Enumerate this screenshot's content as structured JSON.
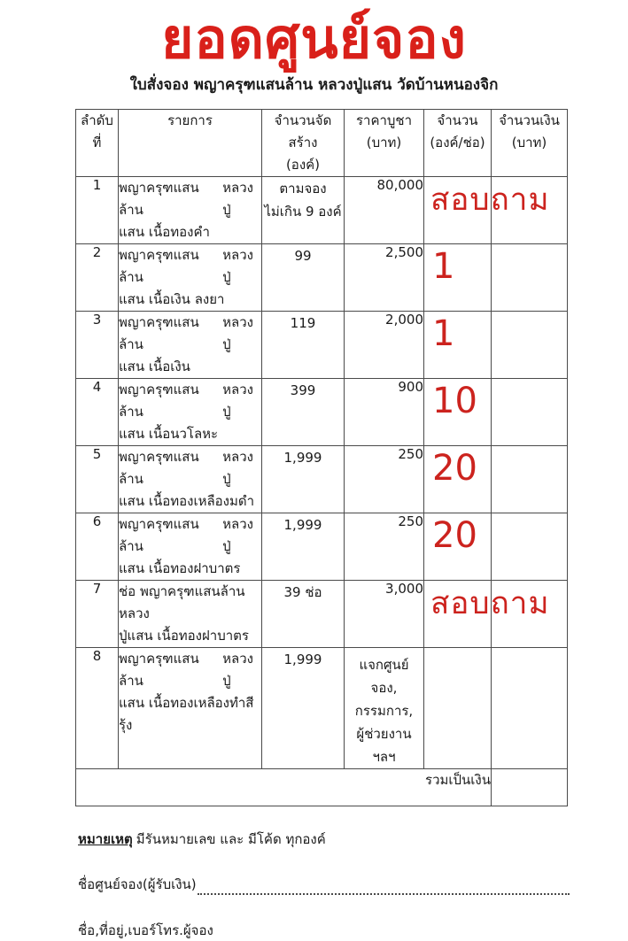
{
  "header": {
    "title": "ยอดศูนย์จอง",
    "subtitle": "ใบสั่งจอง พญาครุฑแสนล้าน หลวงปู่แสน วัดบ้านหนองจิก"
  },
  "colors": {
    "title_red": "#d9201a",
    "annotation_red": "#cc231e"
  },
  "table": {
    "headers": [
      [
        "ลำดับ",
        "ที่"
      ],
      [
        "รายการ"
      ],
      [
        "จำนวนจัดสร้าง",
        "(องค์)"
      ],
      [
        "ราคาบูชา",
        "(บาท)"
      ],
      [
        "จำนวน",
        "(องค์/ช่อ)"
      ],
      [
        "จำนวนเงิน",
        "(บาท)"
      ]
    ],
    "rows": [
      {
        "no": "1",
        "item": [
          [
            "พญาครุฑแสนล้าน",
            "หลวงปู่"
          ],
          [
            "แสน เนื้อทองคำ"
          ]
        ],
        "made": [
          "ตามจอง",
          "ไม่เกิน 9 องค์"
        ],
        "price": "80,000",
        "qty": "สอบถาม",
        "qty_kind": "ask",
        "amount": ""
      },
      {
        "no": "2",
        "item": [
          [
            "พญาครุฑแสนล้าน",
            "หลวงปู่"
          ],
          [
            "แสน เนื้อเงิน ลงยา"
          ]
        ],
        "made": [
          "99"
        ],
        "price": "2,500",
        "qty": "1",
        "qty_kind": "num",
        "amount": ""
      },
      {
        "no": "3",
        "item": [
          [
            "พญาครุฑแสนล้าน",
            "หลวงปู่"
          ],
          [
            "แสน เนื้อเงิน"
          ]
        ],
        "made": [
          "119"
        ],
        "price": "2,000",
        "qty": "1",
        "qty_kind": "num",
        "amount": ""
      },
      {
        "no": "4",
        "item": [
          [
            "พญาครุฑแสนล้าน",
            "หลวงปู่"
          ],
          [
            "แสน เนื้อนวโลหะ"
          ]
        ],
        "made": [
          "399"
        ],
        "price": "900",
        "qty": "10",
        "qty_kind": "num",
        "amount": ""
      },
      {
        "no": "5",
        "item": [
          [
            "พญาครุฑแสนล้าน",
            "หลวงปู่"
          ],
          [
            "แสน เนื้อทองเหลืองมดำ"
          ]
        ],
        "made": [
          "1,999"
        ],
        "price": "250",
        "qty": "20",
        "qty_kind": "num",
        "amount": ""
      },
      {
        "no": "6",
        "item": [
          [
            "พญาครุฑแสนล้าน",
            "หลวงปู่"
          ],
          [
            "แสน เนื้อทองฝาบาตร"
          ]
        ],
        "made": [
          "1,999"
        ],
        "price": "250",
        "qty": "20",
        "qty_kind": "num",
        "amount": ""
      },
      {
        "no": "7",
        "item": [
          [
            "ช่อ พญาครุฑแสนล้าน หลวง"
          ],
          [
            "ปู่แสน เนื้อทองฝาบาตร"
          ]
        ],
        "made": [
          "39 ช่อ"
        ],
        "price": "3,000",
        "qty": "สอบถาม",
        "qty_kind": "ask",
        "amount": ""
      },
      {
        "no": "8",
        "item": [
          [
            "พญาครุฑแสนล้าน",
            "หลวงปู่"
          ],
          [
            "แสน เนื้อทองเหลืองทำสีรุ้ง"
          ]
        ],
        "made": [
          "1,999"
        ],
        "price_lines": [
          "แจกศูนย์จอง,",
          "กรรมการ,",
          "ผู้ช่วยงานฯลฯ"
        ],
        "qty": "",
        "qty_kind": "none",
        "amount": ""
      }
    ],
    "total_label": "รวมเป็นเงิน",
    "total_amount": ""
  },
  "notes": {
    "note_label": "หมายเหตุ",
    "note_text": "มีรันหมายเลข และ มีโค้ด ทุกองค์",
    "center_label": "ชื่อศูนย์จอง(ผู้รับเงิน)",
    "booker_label": "ชื่อ,ที่อยู่,เบอร์โทร.ผู้จอง"
  }
}
